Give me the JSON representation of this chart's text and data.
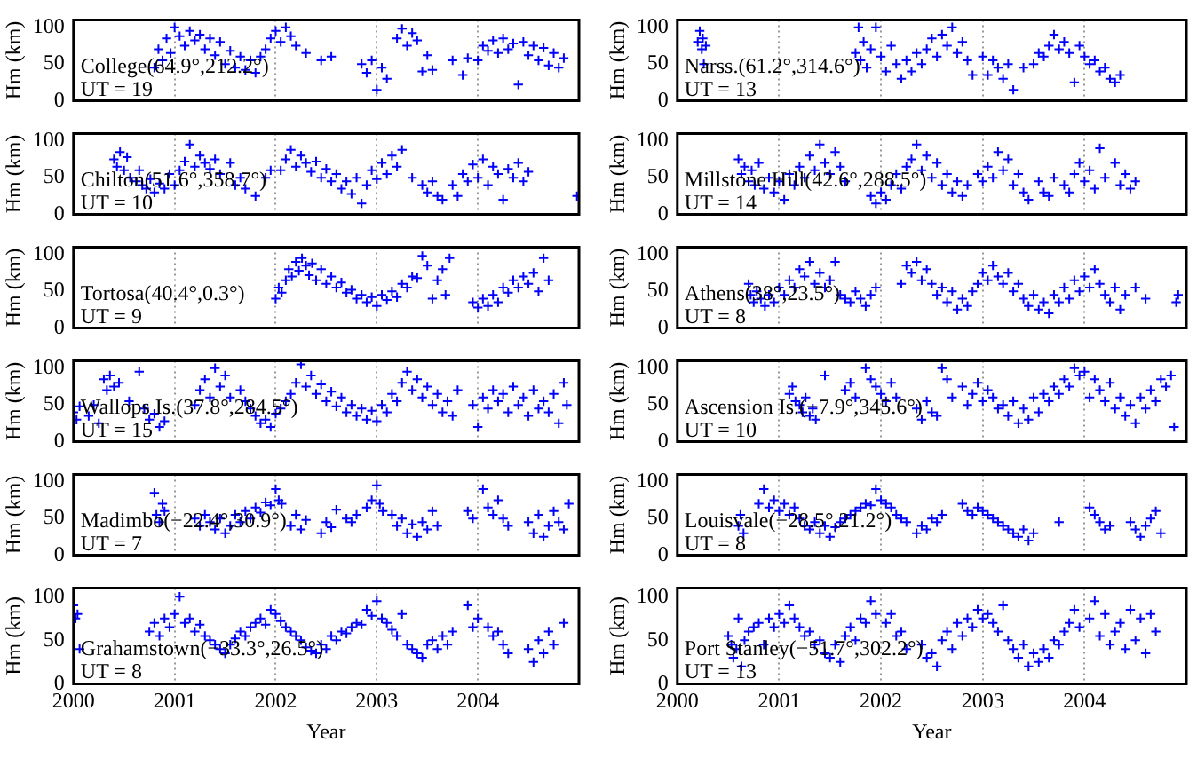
{
  "chart_data": [
    {
      "type": "scatter",
      "ylabel": "Hm (km)",
      "annotations": [
        "College(64.9°,212.2°)",
        "UT = 19"
      ],
      "color": "#0000ff",
      "marker": "cross",
      "grid": "x",
      "tick_labels": "y",
      "xlim": [
        2000,
        2005
      ],
      "xticks": [
        2000,
        2001,
        2002,
        2003,
        2004
      ],
      "ylim": [
        0,
        110
      ],
      "yticks": [
        0,
        50,
        100
      ],
      "x": [
        2000.8,
        2000.84,
        2000.88,
        2000.92,
        2000.96,
        2001.0,
        2001.05,
        2001.1,
        2001.15,
        2001.2,
        2001.25,
        2001.3,
        2001.35,
        2001.4,
        2001.45,
        2001.5,
        2001.55,
        2001.6,
        2001.65,
        2001.7,
        2001.75,
        2001.8,
        2001.85,
        2001.9,
        2001.95,
        2002.0,
        2002.05,
        2002.1,
        2002.15,
        2002.2,
        2002.3,
        2002.45,
        2002.55,
        2002.85,
        2002.9,
        2002.95,
        2003.0,
        2003.05,
        2003.1,
        2003.2,
        2003.25,
        2003.3,
        2003.35,
        2003.4,
        2003.45,
        2003.5,
        2003.55,
        2003.75,
        2003.85,
        2003.9,
        2004.0,
        2004.05,
        2004.1,
        2004.15,
        2004.2,
        2004.25,
        2004.3,
        2004.35,
        2004.4,
        2004.45,
        2004.5,
        2004.55,
        2004.6,
        2004.65,
        2004.7,
        2004.75,
        2004.8,
        2004.85
      ],
      "values": [
        45,
        70,
        55,
        85,
        65,
        100,
        88,
        75,
        95,
        82,
        90,
        70,
        85,
        62,
        80,
        50,
        68,
        45,
        60,
        42,
        55,
        38,
        60,
        70,
        85,
        95,
        80,
        100,
        88,
        75,
        65,
        55,
        60,
        50,
        38,
        55,
        15,
        45,
        30,
        85,
        98,
        75,
        92,
        82,
        40,
        62,
        42,
        55,
        35,
        58,
        55,
        75,
        68,
        82,
        65,
        85,
        70,
        78,
        22,
        80,
        62,
        75,
        55,
        72,
        48,
        65,
        45,
        58
      ]
    },
    {
      "type": "scatter",
      "ylabel": "Hm (km)",
      "annotations": [
        "Narss.(61.2°,314.6°)",
        "UT = 13"
      ],
      "color": "#0000ff",
      "marker": "cross",
      "grid": "x",
      "tick_labels": "y",
      "xlim": [
        2000,
        2005
      ],
      "xticks": [
        2000,
        2001,
        2002,
        2003,
        2004
      ],
      "ylim": [
        0,
        110
      ],
      "yticks": [
        0,
        50,
        100
      ],
      "x": [
        2000.2,
        2000.22,
        2000.24,
        2000.25,
        2000.26,
        2000.28,
        2001.75,
        2001.78,
        2001.8,
        2001.83,
        2001.86,
        2001.9,
        2001.95,
        2002.0,
        2002.05,
        2002.1,
        2002.15,
        2002.2,
        2002.25,
        2002.3,
        2002.35,
        2002.4,
        2002.45,
        2002.5,
        2002.55,
        2002.6,
        2002.65,
        2002.7,
        2002.75,
        2002.8,
        2002.85,
        2002.9,
        2003.0,
        2003.05,
        2003.1,
        2003.15,
        2003.2,
        2003.25,
        2003.3,
        2003.4,
        2003.5,
        2003.55,
        2003.6,
        2003.65,
        2003.7,
        2003.75,
        2003.8,
        2003.85,
        2003.9,
        2003.95,
        2004.0,
        2004.05,
        2004.1,
        2004.15,
        2004.2,
        2004.25,
        2004.3,
        2004.35
      ],
      "values": [
        80,
        95,
        70,
        85,
        50,
        75,
        65,
        100,
        55,
        80,
        45,
        70,
        100,
        60,
        40,
        75,
        50,
        30,
        55,
        40,
        65,
        50,
        70,
        85,
        60,
        90,
        75,
        100,
        65,
        80,
        55,
        35,
        60,
        35,
        55,
        45,
        30,
        50,
        15,
        45,
        50,
        65,
        60,
        75,
        90,
        70,
        80,
        65,
        25,
        75,
        60,
        50,
        55,
        40,
        45,
        30,
        25,
        35
      ]
    },
    {
      "type": "scatter",
      "ylabel": "Hm (km)",
      "annotations": [
        "Chilton(51.6°,358.7°)",
        "UT = 10"
      ],
      "color": "#0000ff",
      "marker": "cross",
      "grid": "x",
      "tick_labels": "y",
      "xlim": [
        2000,
        2005
      ],
      "xticks": [
        2000,
        2001,
        2002,
        2003,
        2004
      ],
      "ylim": [
        0,
        110
      ],
      "yticks": [
        0,
        50,
        100
      ],
      "x": [
        2000.4,
        2000.43,
        2000.46,
        2000.5,
        2000.53,
        2000.56,
        2000.62,
        2000.65,
        2000.68,
        2000.72,
        2000.76,
        2000.8,
        2000.85,
        2000.9,
        2000.95,
        2001.0,
        2001.05,
        2001.1,
        2001.15,
        2001.2,
        2001.25,
        2001.3,
        2001.35,
        2001.4,
        2001.45,
        2001.55,
        2001.6,
        2001.65,
        2001.7,
        2001.8,
        2001.9,
        2001.95,
        2002.05,
        2002.1,
        2002.15,
        2002.2,
        2002.25,
        2002.3,
        2002.35,
        2002.4,
        2002.45,
        2002.5,
        2002.55,
        2002.6,
        2002.65,
        2002.7,
        2002.75,
        2002.8,
        2002.85,
        2002.9,
        2002.95,
        2003.0,
        2003.05,
        2003.1,
        2003.15,
        2003.2,
        2003.25,
        2003.35,
        2003.45,
        2003.5,
        2003.55,
        2003.6,
        2003.65,
        2003.75,
        2003.8,
        2003.85,
        2003.9,
        2003.95,
        2004.0,
        2004.05,
        2004.1,
        2004.15,
        2004.2,
        2004.25,
        2004.3,
        2004.35,
        2004.4,
        2004.45,
        2004.5,
        2004.98
      ],
      "values": [
        75,
        65,
        85,
        60,
        78,
        50,
        45,
        60,
        40,
        35,
        48,
        30,
        42,
        35,
        55,
        40,
        60,
        72,
        95,
        65,
        80,
        70,
        62,
        75,
        55,
        70,
        40,
        50,
        35,
        25,
        50,
        60,
        60,
        75,
        88,
        65,
        80,
        70,
        58,
        72,
        50,
        62,
        45,
        55,
        35,
        45,
        28,
        50,
        15,
        40,
        60,
        48,
        70,
        55,
        80,
        65,
        88,
        50,
        40,
        30,
        45,
        25,
        20,
        40,
        25,
        55,
        45,
        68,
        50,
        75,
        40,
        65,
        55,
        20,
        62,
        50,
        70,
        45,
        58,
        25
      ]
    },
    {
      "type": "scatter",
      "ylabel": "Hm (km)",
      "annotations": [
        "Millstone Hill(42.6°,288.5°)",
        "UT = 14"
      ],
      "color": "#0000ff",
      "marker": "cross",
      "grid": "x",
      "tick_labels": "y",
      "xlim": [
        2000,
        2005
      ],
      "xticks": [
        2000,
        2001,
        2002,
        2003,
        2004
      ],
      "ylim": [
        0,
        110
      ],
      "yticks": [
        0,
        50,
        100
      ],
      "x": [
        2000.6,
        2000.63,
        2000.66,
        2000.7,
        2000.73,
        2000.76,
        2000.8,
        2000.85,
        2000.9,
        2000.95,
        2001.0,
        2001.05,
        2001.1,
        2001.15,
        2001.2,
        2001.25,
        2001.3,
        2001.35,
        2001.4,
        2001.45,
        2001.5,
        2001.55,
        2001.6,
        2001.65,
        2001.9,
        2001.95,
        2002.0,
        2002.05,
        2002.1,
        2002.15,
        2002.2,
        2002.25,
        2002.3,
        2002.35,
        2002.4,
        2002.45,
        2002.5,
        2002.55,
        2002.6,
        2002.65,
        2002.7,
        2002.75,
        2002.8,
        2002.85,
        2002.95,
        2003.0,
        2003.05,
        2003.1,
        2003.15,
        2003.2,
        2003.25,
        2003.3,
        2003.35,
        2003.4,
        2003.45,
        2003.55,
        2003.6,
        2003.65,
        2003.7,
        2003.8,
        2003.85,
        2003.9,
        2003.95,
        2004.0,
        2004.05,
        2004.1,
        2004.15,
        2004.2,
        2004.3,
        2004.35,
        2004.4,
        2004.45,
        2004.5
      ],
      "values": [
        75,
        55,
        65,
        45,
        60,
        40,
        70,
        35,
        50,
        30,
        45,
        20,
        55,
        40,
        65,
        50,
        80,
        60,
        95,
        70,
        55,
        85,
        65,
        45,
        25,
        15,
        30,
        20,
        40,
        55,
        35,
        65,
        75,
        95,
        60,
        80,
        50,
        70,
        40,
        55,
        30,
        45,
        25,
        40,
        55,
        45,
        65,
        50,
        85,
        60,
        75,
        40,
        55,
        30,
        20,
        45,
        30,
        25,
        50,
        40,
        30,
        55,
        70,
        45,
        60,
        35,
        90,
        50,
        70,
        40,
        55,
        35,
        45
      ]
    },
    {
      "type": "scatter",
      "ylabel": "Hm (km)",
      "annotations": [
        "Tortosa(40.4°,0.3°)",
        "UT = 9"
      ],
      "color": "#0000ff",
      "marker": "cross",
      "grid": "x",
      "tick_labels": "y",
      "xlim": [
        2000,
        2005
      ],
      "xticks": [
        2000,
        2001,
        2002,
        2003,
        2004
      ],
      "ylim": [
        0,
        110
      ],
      "yticks": [
        0,
        50,
        100
      ],
      "x": [
        2002.0,
        2002.03,
        2002.06,
        2002.1,
        2002.13,
        2002.16,
        2002.2,
        2002.23,
        2002.26,
        2002.3,
        2002.33,
        2002.36,
        2002.4,
        2002.45,
        2002.5,
        2002.55,
        2002.6,
        2002.65,
        2002.7,
        2002.75,
        2002.8,
        2002.85,
        2002.9,
        2002.95,
        2003.0,
        2003.05,
        2003.1,
        2003.15,
        2003.2,
        2003.25,
        2003.3,
        2003.35,
        2003.4,
        2003.45,
        2003.5,
        2003.55,
        2003.6,
        2003.65,
        2003.68,
        2003.72,
        2003.95,
        2004.0,
        2004.05,
        2004.1,
        2004.15,
        2004.2,
        2004.25,
        2004.3,
        2004.35,
        2004.4,
        2004.45,
        2004.5,
        2004.55,
        2004.6,
        2004.65,
        2004.7
      ],
      "values": [
        40,
        55,
        48,
        65,
        80,
        70,
        90,
        78,
        95,
        85,
        72,
        88,
        65,
        80,
        60,
        70,
        55,
        62,
        48,
        52,
        40,
        45,
        35,
        42,
        30,
        45,
        38,
        50,
        42,
        60,
        55,
        70,
        68,
        98,
        85,
        40,
        65,
        80,
        45,
        95,
        35,
        28,
        40,
        30,
        45,
        35,
        55,
        48,
        65,
        55,
        70,
        60,
        75,
        50,
        95,
        65
      ]
    },
    {
      "type": "scatter",
      "ylabel": "Hm (km)",
      "annotations": [
        "Athens(38°,23.5°)",
        "UT = 8"
      ],
      "color": "#0000ff",
      "marker": "cross",
      "grid": "x",
      "tick_labels": "y",
      "xlim": [
        2000,
        2005
      ],
      "xticks": [
        2000,
        2001,
        2002,
        2003,
        2004
      ],
      "ylim": [
        0,
        110
      ],
      "yticks": [
        0,
        50,
        100
      ],
      "x": [
        2000.7,
        2000.72,
        2000.75,
        2000.78,
        2000.82,
        2000.86,
        2000.9,
        2000.95,
        2001.0,
        2001.05,
        2001.1,
        2001.15,
        2001.2,
        2001.25,
        2001.3,
        2001.35,
        2001.4,
        2001.45,
        2001.5,
        2001.55,
        2001.6,
        2001.65,
        2001.7,
        2001.75,
        2001.8,
        2001.85,
        2001.9,
        2001.95,
        2002.2,
        2002.25,
        2002.3,
        2002.35,
        2002.4,
        2002.45,
        2002.5,
        2002.55,
        2002.6,
        2002.65,
        2002.7,
        2002.75,
        2002.8,
        2002.85,
        2002.9,
        2002.95,
        2003.0,
        2003.05,
        2003.1,
        2003.15,
        2003.2,
        2003.25,
        2003.3,
        2003.35,
        2003.4,
        2003.45,
        2003.5,
        2003.55,
        2003.6,
        2003.65,
        2003.7,
        2003.75,
        2003.8,
        2003.85,
        2003.9,
        2003.95,
        2004.0,
        2004.05,
        2004.1,
        2004.15,
        2004.2,
        2004.25,
        2004.3,
        2004.35,
        2004.4,
        2004.5,
        2004.6,
        2004.9,
        2004.92
      ],
      "values": [
        60,
        45,
        35,
        50,
        40,
        30,
        45,
        35,
        55,
        45,
        65,
        55,
        80,
        70,
        90,
        60,
        75,
        55,
        65,
        90,
        45,
        40,
        35,
        50,
        40,
        30,
        45,
        55,
        60,
        85,
        75,
        90,
        65,
        80,
        60,
        45,
        55,
        35,
        50,
        25,
        40,
        30,
        50,
        60,
        75,
        65,
        85,
        70,
        60,
        75,
        50,
        60,
        40,
        30,
        45,
        25,
        35,
        20,
        45,
        35,
        55,
        40,
        65,
        50,
        70,
        55,
        80,
        60,
        45,
        35,
        55,
        25,
        45,
        55,
        40,
        35,
        45
      ]
    },
    {
      "type": "scatter",
      "ylabel": "Hm (km)",
      "annotations": [
        "Wallops Is.(37.8°,284.5°)",
        "UT = 15"
      ],
      "color": "#0000ff",
      "marker": "cross",
      "grid": "x",
      "tick_labels": "y",
      "xlim": [
        2000,
        2005
      ],
      "xticks": [
        2000,
        2001,
        2002,
        2003,
        2004
      ],
      "ylim": [
        0,
        110
      ],
      "yticks": [
        0,
        50,
        100
      ],
      "x": [
        2000.0,
        2000.03,
        2000.06,
        2000.15,
        2000.2,
        2000.25,
        2000.3,
        2000.33,
        2000.36,
        2000.4,
        2000.45,
        2000.55,
        2000.65,
        2000.7,
        2000.75,
        2000.8,
        2000.85,
        2000.9,
        2001.2,
        2001.25,
        2001.3,
        2001.35,
        2001.4,
        2001.45,
        2001.5,
        2001.55,
        2001.65,
        2001.7,
        2001.75,
        2001.8,
        2001.85,
        2001.9,
        2001.95,
        2002.0,
        2002.05,
        2002.1,
        2002.15,
        2002.2,
        2002.25,
        2002.3,
        2002.35,
        2002.4,
        2002.45,
        2002.5,
        2002.55,
        2002.6,
        2002.65,
        2002.7,
        2002.75,
        2002.8,
        2002.85,
        2002.9,
        2002.95,
        2003.0,
        2003.05,
        2003.1,
        2003.15,
        2003.2,
        2003.25,
        2003.3,
        2003.35,
        2003.4,
        2003.45,
        2003.5,
        2003.55,
        2003.6,
        2003.65,
        2003.7,
        2003.75,
        2003.8,
        2003.95,
        2004.0,
        2004.05,
        2004.1,
        2004.15,
        2004.2,
        2004.25,
        2004.3,
        2004.35,
        2004.4,
        2004.45,
        2004.5,
        2004.55,
        2004.6,
        2004.65,
        2004.7,
        2004.75,
        2004.8,
        2004.85,
        2004.88
      ],
      "values": [
        40,
        30,
        48,
        35,
        50,
        25,
        85,
        70,
        90,
        75,
        80,
        55,
        95,
        45,
        30,
        38,
        20,
        28,
        50,
        70,
        85,
        60,
        100,
        75,
        90,
        60,
        70,
        55,
        45,
        35,
        25,
        30,
        20,
        38,
        45,
        55,
        65,
        80,
        105,
        75,
        90,
        65,
        78,
        55,
        68,
        48,
        60,
        40,
        50,
        35,
        45,
        30,
        42,
        28,
        50,
        40,
        65,
        55,
        80,
        95,
        70,
        85,
        60,
        75,
        50,
        65,
        40,
        55,
        35,
        70,
        50,
        20,
        60,
        45,
        70,
        55,
        65,
        40,
        75,
        50,
        60,
        35,
        70,
        45,
        55,
        40,
        65,
        25,
        80,
        50
      ]
    },
    {
      "type": "scatter",
      "ylabel": "Hm (km)",
      "annotations": [
        "Ascension Is.(−7.9°,345.6°)",
        "UT = 10"
      ],
      "color": "#0000ff",
      "marker": "cross",
      "grid": "x",
      "tick_labels": "y",
      "xlim": [
        2000,
        2005
      ],
      "xticks": [
        2000,
        2001,
        2002,
        2003,
        2004
      ],
      "ylim": [
        0,
        110
      ],
      "yticks": [
        0,
        50,
        100
      ],
      "x": [
        2001.1,
        2001.13,
        2001.16,
        2001.2,
        2001.23,
        2001.26,
        2001.3,
        2001.33,
        2001.36,
        2001.45,
        2001.65,
        2001.7,
        2001.75,
        2001.85,
        2001.9,
        2001.95,
        2002.0,
        2002.05,
        2002.1,
        2002.15,
        2002.35,
        2002.4,
        2002.45,
        2002.5,
        2002.55,
        2002.6,
        2002.65,
        2002.7,
        2002.8,
        2002.85,
        2002.9,
        2002.95,
        2003.0,
        2003.05,
        2003.1,
        2003.15,
        2003.2,
        2003.25,
        2003.3,
        2003.35,
        2003.4,
        2003.45,
        2003.5,
        2003.55,
        2003.6,
        2003.65,
        2003.7,
        2003.75,
        2003.8,
        2003.85,
        2003.9,
        2003.95,
        2004.0,
        2004.05,
        2004.1,
        2004.15,
        2004.2,
        2004.25,
        2004.3,
        2004.35,
        2004.4,
        2004.45,
        2004.5,
        2004.55,
        2004.6,
        2004.65,
        2004.7,
        2004.75,
        2004.8,
        2004.85,
        2004.88
      ],
      "values": [
        65,
        75,
        55,
        50,
        40,
        60,
        35,
        45,
        30,
        90,
        70,
        80,
        60,
        100,
        85,
        75,
        65,
        55,
        80,
        60,
        45,
        30,
        55,
        40,
        35,
        100,
        85,
        60,
        75,
        50,
        65,
        80,
        55,
        70,
        60,
        45,
        50,
        35,
        55,
        25,
        45,
        30,
        60,
        40,
        65,
        55,
        75,
        65,
        85,
        75,
        100,
        90,
        95,
        60,
        85,
        70,
        55,
        80,
        45,
        60,
        35,
        50,
        25,
        60,
        45,
        70,
        55,
        85,
        75,
        90,
        20
      ]
    },
    {
      "type": "scatter",
      "ylabel": "Hm (km)",
      "annotations": [
        "Madimbo(−22.4°,30.9°)",
        "UT = 7"
      ],
      "color": "#0000ff",
      "marker": "cross",
      "grid": "x",
      "tick_labels": "y",
      "xlim": [
        2000,
        2005
      ],
      "xticks": [
        2000,
        2001,
        2002,
        2003,
        2004
      ],
      "ylim": [
        0,
        110
      ],
      "yticks": [
        0,
        50,
        100
      ],
      "x": [
        2000.8,
        2000.82,
        2000.85,
        2000.88,
        2000.9,
        2001.2,
        2001.25,
        2001.3,
        2001.35,
        2001.4,
        2001.45,
        2001.5,
        2001.55,
        2001.6,
        2001.65,
        2001.7,
        2001.75,
        2001.8,
        2001.85,
        2001.9,
        2001.95,
        2002.0,
        2002.03,
        2002.06,
        2002.15,
        2002.2,
        2002.25,
        2002.3,
        2002.45,
        2002.5,
        2002.55,
        2002.6,
        2002.7,
        2002.75,
        2002.8,
        2002.9,
        2002.95,
        2003.0,
        2003.03,
        2003.06,
        2003.15,
        2003.2,
        2003.25,
        2003.3,
        2003.35,
        2003.4,
        2003.45,
        2003.5,
        2003.55,
        2003.6,
        2003.9,
        2003.95,
        2004.05,
        2004.1,
        2004.15,
        2004.2,
        2004.25,
        2004.3,
        2004.5,
        2004.55,
        2004.6,
        2004.65,
        2004.7,
        2004.75,
        2004.8,
        2004.85,
        2004.9
      ],
      "values": [
        85,
        55,
        45,
        70,
        60,
        50,
        40,
        55,
        45,
        35,
        50,
        30,
        40,
        55,
        45,
        60,
        50,
        65,
        58,
        72,
        68,
        90,
        75,
        70,
        40,
        55,
        35,
        48,
        30,
        45,
        38,
        62,
        50,
        45,
        55,
        65,
        75,
        95,
        70,
        60,
        55,
        40,
        50,
        30,
        42,
        25,
        45,
        35,
        60,
        40,
        60,
        50,
        90,
        65,
        55,
        75,
        50,
        40,
        45,
        30,
        55,
        25,
        40,
        60,
        45,
        35,
        70
      ]
    },
    {
      "type": "scatter",
      "ylabel": "Hm (km)",
      "annotations": [
        "Louisvale(−28.5°,21.2°)",
        "UT = 8"
      ],
      "color": "#0000ff",
      "marker": "cross",
      "grid": "x",
      "tick_labels": "y",
      "xlim": [
        2000,
        2005
      ],
      "xticks": [
        2000,
        2001,
        2002,
        2003,
        2004
      ],
      "ylim": [
        0,
        110
      ],
      "yticks": [
        0,
        50,
        100
      ],
      "x": [
        2000.6,
        2000.62,
        2000.65,
        2000.8,
        2000.85,
        2000.9,
        2000.95,
        2001.0,
        2001.05,
        2001.1,
        2001.15,
        2001.2,
        2001.25,
        2001.3,
        2001.35,
        2001.4,
        2001.45,
        2001.5,
        2001.55,
        2001.6,
        2001.65,
        2001.7,
        2001.75,
        2001.8,
        2001.85,
        2001.9,
        2001.95,
        2002.0,
        2002.05,
        2002.1,
        2002.15,
        2002.2,
        2002.25,
        2002.35,
        2002.4,
        2002.45,
        2002.5,
        2002.55,
        2002.6,
        2002.8,
        2002.85,
        2002.9,
        2002.95,
        2003.0,
        2003.05,
        2003.1,
        2003.15,
        2003.2,
        2003.25,
        2003.3,
        2003.35,
        2003.4,
        2003.45,
        2003.5,
        2003.75,
        2004.05,
        2004.1,
        2004.15,
        2004.2,
        2004.25,
        2004.45,
        2004.5,
        2004.55,
        2004.6,
        2004.65,
        2004.7,
        2004.75
      ],
      "values": [
        40,
        55,
        30,
        70,
        90,
        65,
        75,
        60,
        70,
        55,
        65,
        50,
        40,
        35,
        45,
        30,
        40,
        25,
        38,
        45,
        50,
        55,
        60,
        65,
        70,
        68,
        90,
        75,
        70,
        65,
        55,
        50,
        45,
        30,
        40,
        35,
        50,
        45,
        55,
        70,
        60,
        55,
        65,
        60,
        55,
        50,
        45,
        40,
        35,
        30,
        25,
        35,
        20,
        30,
        45,
        65,
        55,
        45,
        35,
        40,
        45,
        35,
        25,
        40,
        50,
        60,
        30
      ]
    },
    {
      "type": "scatter",
      "xlabel": "Year",
      "ylabel": "Hm (km)",
      "annotations": [
        "Grahamstown(−33.3°,26.5°)",
        "UT = 8"
      ],
      "color": "#0000ff",
      "marker": "cross",
      "grid": "x",
      "xlim": [
        2000,
        2005
      ],
      "xticks": [
        2000,
        2001,
        2002,
        2003,
        2004
      ],
      "ylim": [
        0,
        110
      ],
      "yticks": [
        0,
        50,
        100
      ],
      "x": [
        2000.0,
        2000.02,
        2000.04,
        2000.06,
        2000.75,
        2000.8,
        2000.85,
        2000.9,
        2000.95,
        2001.0,
        2001.05,
        2001.1,
        2001.15,
        2001.2,
        2001.25,
        2001.3,
        2001.35,
        2001.4,
        2001.45,
        2001.5,
        2001.55,
        2001.6,
        2001.65,
        2001.7,
        2001.75,
        2001.8,
        2001.85,
        2001.9,
        2001.95,
        2002.0,
        2002.05,
        2002.1,
        2002.15,
        2002.2,
        2002.25,
        2002.3,
        2002.35,
        2002.4,
        2002.45,
        2002.5,
        2002.55,
        2002.6,
        2002.65,
        2002.7,
        2002.75,
        2002.8,
        2002.85,
        2002.9,
        2002.95,
        2003.0,
        2003.05,
        2003.1,
        2003.15,
        2003.2,
        2003.25,
        2003.3,
        2003.35,
        2003.4,
        2003.45,
        2003.5,
        2003.55,
        2003.6,
        2003.65,
        2003.7,
        2003.75,
        2003.9,
        2003.95,
        2004.0,
        2004.1,
        2004.15,
        2004.2,
        2004.25,
        2004.3,
        2004.5,
        2004.55,
        2004.6,
        2004.65,
        2004.7,
        2004.75,
        2004.85
      ],
      "values": [
        90,
        75,
        80,
        40,
        60,
        70,
        55,
        75,
        65,
        80,
        100,
        70,
        75,
        60,
        68,
        55,
        50,
        45,
        40,
        35,
        45,
        52,
        60,
        55,
        65,
        70,
        75,
        68,
        85,
        80,
        72,
        65,
        60,
        55,
        50,
        42,
        38,
        35,
        45,
        40,
        55,
        50,
        60,
        58,
        65,
        70,
        68,
        85,
        78,
        95,
        75,
        70,
        62,
        55,
        80,
        45,
        40,
        35,
        30,
        45,
        50,
        40,
        55,
        45,
        60,
        90,
        65,
        75,
        65,
        55,
        60,
        45,
        35,
        40,
        25,
        50,
        35,
        60,
        45,
        70
      ]
    },
    {
      "type": "scatter",
      "xlabel": "Year",
      "ylabel": "Hm (km)",
      "annotations": [
        "Port Stanley(−51.7°,302.2°)",
        "UT = 13"
      ],
      "color": "#0000ff",
      "marker": "cross",
      "grid": "x",
      "xlim": [
        2000,
        2005
      ],
      "xticks": [
        2000,
        2001,
        2002,
        2003,
        2004
      ],
      "ylim": [
        0,
        110
      ],
      "yticks": [
        0,
        50,
        100
      ],
      "x": [
        2000.5,
        2000.53,
        2000.55,
        2000.58,
        2000.6,
        2000.63,
        2000.66,
        2000.7,
        2000.75,
        2000.8,
        2000.85,
        2000.9,
        2000.95,
        2001.0,
        2001.05,
        2001.1,
        2001.15,
        2001.2,
        2001.25,
        2001.3,
        2001.35,
        2001.4,
        2001.45,
        2001.5,
        2001.55,
        2001.6,
        2001.65,
        2001.7,
        2001.75,
        2001.8,
        2001.85,
        2001.9,
        2001.95,
        2002.05,
        2002.1,
        2002.15,
        2002.2,
        2002.25,
        2002.4,
        2002.45,
        2002.5,
        2002.55,
        2002.6,
        2002.65,
        2002.7,
        2002.75,
        2002.8,
        2002.85,
        2002.9,
        2002.95,
        2003.0,
        2003.05,
        2003.1,
        2003.15,
        2003.2,
        2003.25,
        2003.3,
        2003.35,
        2003.4,
        2003.45,
        2003.5,
        2003.55,
        2003.6,
        2003.65,
        2003.7,
        2003.75,
        2003.8,
        2003.85,
        2003.9,
        2003.95,
        2004.05,
        2004.1,
        2004.15,
        2004.2,
        2004.25,
        2004.3,
        2004.35,
        2004.4,
        2004.45,
        2004.5,
        2004.55,
        2004.6,
        2004.65,
        2004.7
      ],
      "values": [
        55,
        45,
        30,
        40,
        75,
        20,
        50,
        60,
        65,
        70,
        45,
        75,
        65,
        80,
        70,
        90,
        75,
        65,
        55,
        60,
        45,
        50,
        35,
        30,
        45,
        25,
        55,
        65,
        50,
        75,
        70,
        95,
        80,
        70,
        80,
        55,
        60,
        40,
        45,
        30,
        35,
        20,
        50,
        60,
        40,
        70,
        55,
        75,
        65,
        85,
        75,
        80,
        70,
        60,
        90,
        50,
        40,
        30,
        45,
        20,
        35,
        25,
        40,
        30,
        50,
        45,
        60,
        70,
        85,
        65,
        75,
        95,
        55,
        80,
        45,
        60,
        70,
        40,
        85,
        50,
        75,
        35,
        80,
        60
      ]
    }
  ]
}
